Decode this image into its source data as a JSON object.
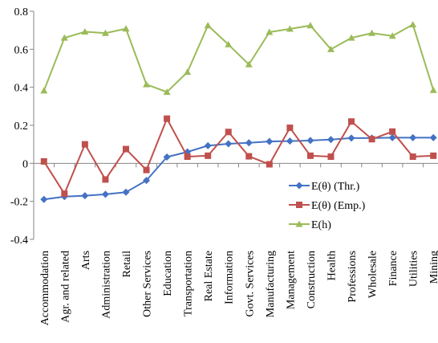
{
  "chart_data": {
    "type": "line",
    "title": "",
    "xlabel": "",
    "ylabel": "",
    "ylim": [
      -0.4,
      0.8
    ],
    "yticks": [
      -0.4,
      -0.2,
      0,
      0.2,
      0.4,
      0.6,
      0.8
    ],
    "ytick_labels": [
      "-0.4",
      "-0.2",
      "0",
      "0.2",
      "0.4",
      "0.6",
      "0.8"
    ],
    "grid": false,
    "legend_position": "right",
    "categories": [
      "Accommodation",
      "Agr. and related",
      "Arts",
      "Administration",
      "Retail",
      "Other Services",
      "Education",
      "Transportation",
      "Real Estate",
      "Information",
      "Govt. Services",
      "Manufacturing",
      "Management",
      "Construction",
      "Health",
      "Professions",
      "Wholesale",
      "Finance",
      "Utilities",
      "Mining"
    ],
    "series": [
      {
        "name": "E(θ) (Thr.)",
        "color": "#4472c4",
        "marker": "diamond",
        "values": [
          -0.19,
          -0.175,
          -0.17,
          -0.163,
          -0.152,
          -0.09,
          0.033,
          0.06,
          0.093,
          0.103,
          0.108,
          0.115,
          0.117,
          0.12,
          0.125,
          0.133,
          0.133,
          0.135,
          0.135,
          0.135
        ]
      },
      {
        "name": "E(θ) (Emp.)",
        "color": "#c0504d",
        "marker": "square",
        "values": [
          0.01,
          -0.16,
          0.1,
          -0.085,
          0.075,
          -0.035,
          0.235,
          0.035,
          0.04,
          0.165,
          0.037,
          -0.005,
          0.187,
          0.04,
          0.035,
          0.22,
          0.127,
          0.167,
          0.035,
          0.04
        ]
      },
      {
        "name": "E(h)",
        "color": "#9bbb59",
        "marker": "triangle",
        "values": [
          0.382,
          0.66,
          0.692,
          0.685,
          0.708,
          0.415,
          0.375,
          0.48,
          0.725,
          0.625,
          0.52,
          0.69,
          0.707,
          0.725,
          0.6,
          0.66,
          0.685,
          0.67,
          0.73,
          0.385
        ]
      }
    ]
  }
}
